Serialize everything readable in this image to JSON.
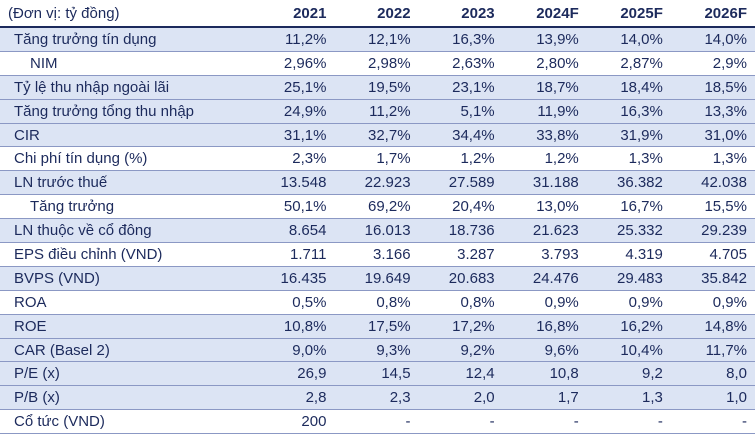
{
  "header": {
    "unit_label": "(Đơn vị: tỷ đồng)",
    "years": [
      "2021",
      "2022",
      "2023",
      "2024F",
      "2025F",
      "2026F"
    ]
  },
  "rows": [
    {
      "label": "Tăng trưởng tín dụng",
      "values": [
        "11,2%",
        "12,1%",
        "16,3%",
        "13,9%",
        "14,0%",
        "14,0%"
      ]
    },
    {
      "label": "NIM",
      "values": [
        "2,96%",
        "2,98%",
        "2,63%",
        "2,80%",
        "2,87%",
        "2,9%"
      ]
    },
    {
      "label": "Tỷ lệ thu nhập ngoài lãi",
      "values": [
        "25,1%",
        "19,5%",
        "23,1%",
        "18,7%",
        "18,4%",
        "18,5%"
      ]
    },
    {
      "label": "Tăng trưởng tổng thu nhập",
      "values": [
        "24,9%",
        "11,2%",
        "5,1%",
        "11,9%",
        "16,3%",
        "13,3%"
      ]
    },
    {
      "label": "CIR",
      "values": [
        "31,1%",
        "32,7%",
        "34,4%",
        "33,8%",
        "31,9%",
        "31,0%"
      ]
    },
    {
      "label": "Chi phí tín dụng (%)",
      "values": [
        "2,3%",
        "1,7%",
        "1,2%",
        "1,2%",
        "1,3%",
        "1,3%"
      ]
    },
    {
      "label": "LN trước thuế",
      "values": [
        "13.548",
        "22.923",
        "27.589",
        "31.188",
        "36.382",
        "42.038"
      ]
    },
    {
      "label": "Tăng trưởng",
      "values": [
        "50,1%",
        "69,2%",
        "20,4%",
        "13,0%",
        "16,7%",
        "15,5%"
      ]
    },
    {
      "label": "LN thuộc về cổ đông",
      "values": [
        "8.654",
        "16.013",
        "18.736",
        "21.623",
        "25.332",
        "29.239"
      ]
    },
    {
      "label": "EPS điều chỉnh (VND)",
      "values": [
        "1.711",
        "3.166",
        "3.287",
        "3.793",
        "4.319",
        "4.705"
      ]
    },
    {
      "label": "BVPS (VND)",
      "values": [
        "16.435",
        "19.649",
        "20.683",
        "24.476",
        "29.483",
        "35.842"
      ]
    },
    {
      "label": "ROA",
      "values": [
        "0,5%",
        "0,8%",
        "0,8%",
        "0,9%",
        "0,9%",
        "0,9%"
      ]
    },
    {
      "label": "ROE",
      "values": [
        "10,8%",
        "17,5%",
        "17,2%",
        "16,8%",
        "16,2%",
        "14,8%"
      ]
    },
    {
      "label": "CAR (Basel 2)",
      "values": [
        "9,0%",
        "9,3%",
        "9,2%",
        "9,6%",
        "10,4%",
        "11,7%"
      ]
    },
    {
      "label": "P/E (x)",
      "values": [
        "26,9",
        "14,5",
        "12,4",
        "10,8",
        "9,2",
        "8,0"
      ]
    },
    {
      "label": "P/B (x)",
      "values": [
        "2,8",
        "2,3",
        "2,0",
        "1,7",
        "1,3",
        "1,0"
      ]
    },
    {
      "label": "Cổ tức (VND)",
      "values": [
        "200",
        "-",
        "-",
        "-",
        "-",
        "-"
      ]
    }
  ],
  "colors": {
    "text": "#1c2a5c",
    "shade": "#dce4f4",
    "rule": "#8b98c4"
  }
}
